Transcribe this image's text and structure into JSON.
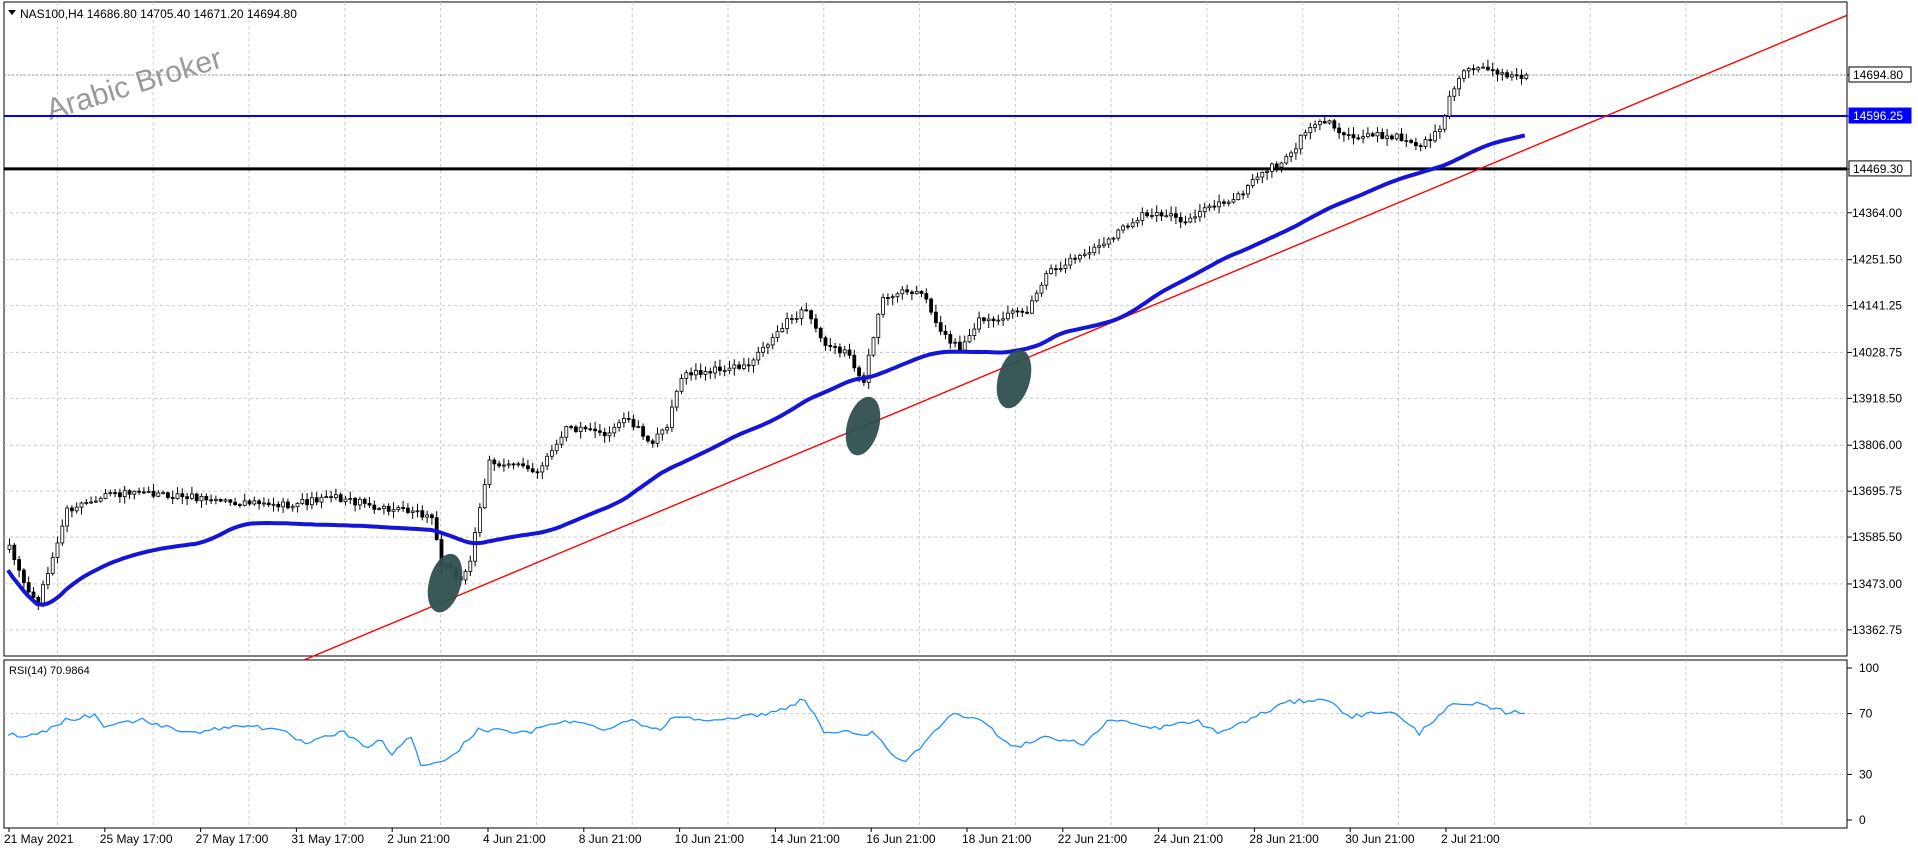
{
  "chart_data": [
    {
      "type": "candlestick",
      "title": "NAS100,H4  14686.80 14705.40 14671.20 14694.80",
      "watermark": "Arabic Broker",
      "ylim": [
        13300,
        14870
      ],
      "y_ticks": [
        "14694.80",
        "14596.25",
        "14469.30",
        "14364.00",
        "14251.50",
        "14141.25",
        "14028.75",
        "13918.50",
        "13806.00",
        "13695.75",
        "13585.50",
        "13473.00",
        "13362.75"
      ],
      "x_ticks": [
        "21 May 2021",
        "25 May 17:00",
        "27 May 17:00",
        "31 May 17:00",
        "2 Jun 21:00",
        "4 Jun 21:00",
        "8 Jun 21:00",
        "10 Jun 21:00",
        "14 Jun 21:00",
        "16 Jun 21:00",
        "18 Jun 21:00",
        "22 Jun 21:00",
        "24 Jun 21:00",
        "28 Jun 21:00",
        "30 Jun 21:00",
        "2 Jul 21:00"
      ],
      "grid": true,
      "current_price": {
        "value": 14694.8,
        "label": "14694.80",
        "color": "#000000"
      },
      "horizontal_lines": [
        {
          "value": 14596.25,
          "label": "14596.25",
          "color": "#0000ff"
        },
        {
          "value": 14469.3,
          "label": "14469.30",
          "color": "#000000"
        }
      ],
      "trendline": {
        "color": "#ff0000",
        "start_value": 13300,
        "end_value": 14838
      },
      "moving_average": {
        "color": "#1515d8",
        "start_value": 13300,
        "end_value": 14490
      },
      "highlights": [
        {
          "value": 13475,
          "color": "#2f4f4f"
        },
        {
          "value": 13852,
          "color": "#2f4f4f"
        },
        {
          "value": 13965,
          "color": "#2f4f4f"
        }
      ],
      "close_anchors": [
        [
          0,
          13558
        ],
        [
          4,
          13452
        ],
        [
          6,
          13425
        ],
        [
          12,
          13650
        ],
        [
          20,
          13690
        ],
        [
          35,
          13685
        ],
        [
          55,
          13660
        ],
        [
          68,
          13680
        ],
        [
          80,
          13650
        ],
        [
          88,
          13635
        ],
        [
          90,
          13520
        ],
        [
          94,
          13485
        ],
        [
          96,
          13530
        ],
        [
          100,
          13768
        ],
        [
          110,
          13745
        ],
        [
          116,
          13848
        ],
        [
          124,
          13832
        ],
        [
          128,
          13872
        ],
        [
          134,
          13812
        ],
        [
          137,
          13848
        ],
        [
          140,
          13975
        ],
        [
          148,
          13988
        ],
        [
          154,
          13996
        ],
        [
          162,
          14102
        ],
        [
          166,
          14135
        ],
        [
          170,
          14038
        ],
        [
          174,
          14032
        ],
        [
          178,
          13965
        ],
        [
          182,
          14165
        ],
        [
          190,
          14175
        ],
        [
          194,
          14075
        ],
        [
          198,
          14040
        ],
        [
          202,
          14108
        ],
        [
          212,
          14125
        ],
        [
          216,
          14222
        ],
        [
          226,
          14278
        ],
        [
          236,
          14362
        ],
        [
          246,
          14348
        ],
        [
          250,
          14378
        ],
        [
          256,
          14402
        ],
        [
          260,
          14455
        ],
        [
          266,
          14492
        ],
        [
          270,
          14558
        ],
        [
          274,
          14585
        ],
        [
          280,
          14545
        ],
        [
          288,
          14550
        ],
        [
          292,
          14535
        ],
        [
          294,
          14525
        ],
        [
          298,
          14562
        ],
        [
          300,
          14640
        ],
        [
          303,
          14712
        ],
        [
          312,
          14696
        ],
        [
          316,
          14694.8
        ]
      ]
    },
    {
      "type": "line",
      "title": "RSI(14) 70.9864",
      "ylim": [
        0,
        100
      ],
      "y_ticks": [
        100,
        70,
        30,
        0
      ],
      "color": "#1e90ff",
      "anchors": [
        [
          0,
          56
        ],
        [
          6,
          56
        ],
        [
          12,
          66
        ],
        [
          18,
          69
        ],
        [
          20,
          62
        ],
        [
          28,
          66
        ],
        [
          34,
          60
        ],
        [
          40,
          58
        ],
        [
          50,
          63
        ],
        [
          58,
          57
        ],
        [
          62,
          50
        ],
        [
          70,
          58
        ],
        [
          74,
          48
        ],
        [
          78,
          52
        ],
        [
          80,
          43
        ],
        [
          84,
          55
        ],
        [
          86,
          36
        ],
        [
          92,
          40
        ],
        [
          98,
          60
        ],
        [
          108,
          57
        ],
        [
          116,
          66
        ],
        [
          124,
          60
        ],
        [
          130,
          66
        ],
        [
          136,
          58
        ],
        [
          138,
          68
        ],
        [
          150,
          66
        ],
        [
          160,
          71
        ],
        [
          166,
          80
        ],
        [
          170,
          58
        ],
        [
          180,
          57
        ],
        [
          186,
          38
        ],
        [
          190,
          46
        ],
        [
          196,
          69
        ],
        [
          202,
          67
        ],
        [
          208,
          52
        ],
        [
          210,
          48
        ],
        [
          216,
          55
        ],
        [
          224,
          50
        ],
        [
          230,
          67
        ],
        [
          238,
          60
        ],
        [
          248,
          65
        ],
        [
          252,
          57
        ],
        [
          260,
          68
        ],
        [
          266,
          77
        ],
        [
          274,
          80
        ],
        [
          280,
          68
        ],
        [
          288,
          72
        ],
        [
          294,
          57
        ],
        [
          300,
          75
        ],
        [
          306,
          76
        ],
        [
          312,
          71
        ],
        [
          316,
          71
        ]
      ]
    }
  ]
}
